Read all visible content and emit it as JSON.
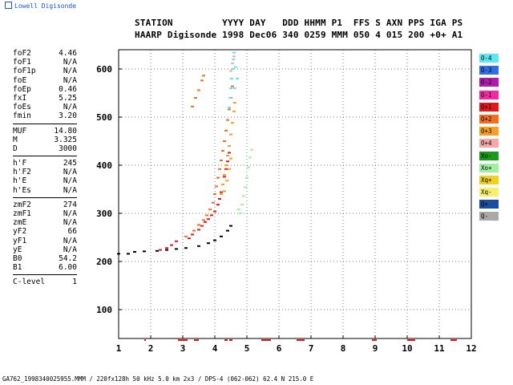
{
  "logo": "Lowell Digisonde",
  "header": {
    "line1": "STATION         YYYY DAY   DDD HHMM P1  FFS S AXN PPS IGA PS",
    "line2": "HAARP Digisonde 1998 Dec06 340 0259 MMM 050 4 015 200 +0+ A1"
  },
  "params": [
    [
      [
        "foF2",
        "4.46"
      ],
      [
        "foF1",
        "N/A"
      ],
      [
        "foF1p",
        "N/A"
      ],
      [
        "foE",
        "N/A"
      ],
      [
        "foEp",
        "0.46"
      ],
      [
        "fxI",
        "5.25"
      ],
      [
        "foEs",
        "N/A"
      ],
      [
        "fmin",
        "3.20"
      ]
    ],
    [
      [
        "MUF",
        "14.80"
      ],
      [
        "M",
        "3.325"
      ],
      [
        "D",
        "3000"
      ]
    ],
    [
      [
        "h'F",
        "245"
      ],
      [
        "h'F2",
        "N/A"
      ],
      [
        "h'E",
        "N/A"
      ],
      [
        "h'Es",
        "N/A"
      ]
    ],
    [
      [
        "zmF2",
        "274"
      ],
      [
        "zmF1",
        "N/A"
      ],
      [
        "zmE",
        "N/A"
      ],
      [
        "yF2",
        "66"
      ],
      [
        "yF1",
        "N/A"
      ],
      [
        "yE",
        "N/A"
      ],
      [
        "B0",
        "54.2"
      ],
      [
        "B1",
        "6.00"
      ]
    ],
    [
      [
        "C-level",
        "1"
      ]
    ]
  ],
  "legend": [
    {
      "label": "O-4",
      "color": "#5fe6f0"
    },
    {
      "label": "O-3",
      "color": "#2f6fe0"
    },
    {
      "label": "O-2",
      "color": "#b01aa8"
    },
    {
      "label": "O-1",
      "color": "#f02aa0"
    },
    {
      "label": "O+1",
      "color": "#e01a1a"
    },
    {
      "label": "O+2",
      "color": "#f07020"
    },
    {
      "label": "O+3",
      "color": "#f5a020"
    },
    {
      "label": "O+4",
      "color": "#f5a8a8"
    },
    {
      "label": "Xo-",
      "color": "#1a9a1a"
    },
    {
      "label": "Xo+",
      "color": "#a0f0a0"
    },
    {
      "label": "Xq+",
      "color": "#f0d020"
    },
    {
      "label": "Xq-",
      "color": "#f5f070"
    },
    {
      "label": "Q+",
      "color": "#1a4fa0"
    },
    {
      "label": "Q-",
      "color": "#a8a8a8"
    }
  ],
  "footer": "GA762_1998340025955.MMM / 220fx128h 50 kHz 5.0 km 2x3 / DPS-4 (062-062) 62.4 N 215.0 E",
  "chart_data": {
    "type": "scatter",
    "xlim": [
      1,
      12
    ],
    "ylim": [
      40,
      640
    ],
    "x_ticks": [
      "1",
      "2",
      "3",
      "4",
      "5",
      "6",
      "7",
      "8",
      "9",
      "10",
      "11",
      "12"
    ],
    "y_ticks": [
      "100",
      "200",
      "300",
      "400",
      "500",
      "600"
    ],
    "grid": true,
    "xlabel": "",
    "ylabel": "",
    "series": [
      {
        "color": "#000000",
        "points": [
          [
            1.0,
            216
          ],
          [
            1.3,
            216
          ],
          [
            1.5,
            220
          ],
          [
            1.8,
            221
          ],
          [
            2.2,
            222
          ],
          [
            2.5,
            224
          ],
          [
            2.8,
            226
          ],
          [
            3.1,
            228
          ],
          [
            3.5,
            232
          ],
          [
            3.8,
            238
          ],
          [
            4.0,
            244
          ],
          [
            4.2,
            252
          ],
          [
            4.4,
            264
          ],
          [
            4.5,
            274
          ]
        ]
      },
      {
        "color": "#e01a1a",
        "points": [
          [
            2.3,
            224
          ],
          [
            2.5,
            228
          ],
          [
            2.65,
            234
          ],
          [
            2.8,
            242
          ],
          [
            3.2,
            248
          ],
          [
            3.3,
            256
          ],
          [
            3.5,
            266
          ],
          [
            3.6,
            274
          ],
          [
            3.7,
            282
          ],
          [
            3.8,
            288
          ],
          [
            3.9,
            296
          ],
          [
            4.0,
            304
          ],
          [
            4.1,
            318
          ],
          [
            4.15,
            330
          ],
          [
            4.2,
            344
          ],
          [
            4.25,
            360
          ],
          [
            4.3,
            376
          ],
          [
            4.35,
            392
          ],
          [
            4.4,
            408
          ],
          [
            4.45,
            426
          ]
        ]
      },
      {
        "color": "#f07020",
        "points": [
          [
            3.1,
            252
          ],
          [
            3.35,
            264
          ],
          [
            3.5,
            276
          ],
          [
            3.65,
            286
          ],
          [
            3.75,
            296
          ],
          [
            3.85,
            308
          ],
          [
            3.95,
            322
          ],
          [
            4.0,
            340
          ],
          [
            4.05,
            356
          ],
          [
            4.1,
            374
          ],
          [
            4.15,
            392
          ],
          [
            4.2,
            410
          ],
          [
            4.25,
            430
          ],
          [
            4.3,
            450
          ],
          [
            4.35,
            472
          ],
          [
            4.4,
            494
          ],
          [
            4.45,
            516
          ],
          [
            4.5,
            540
          ],
          [
            4.55,
            564
          ],
          [
            3.3,
            522
          ],
          [
            3.4,
            540
          ],
          [
            3.5,
            556
          ],
          [
            3.6,
            576
          ],
          [
            3.65,
            586
          ]
        ]
      },
      {
        "color": "#f5a020",
        "points": [
          [
            4.2,
            340
          ],
          [
            4.25,
            360
          ],
          [
            4.3,
            380
          ],
          [
            4.35,
            400
          ],
          [
            4.4,
            420
          ],
          [
            4.45,
            440
          ],
          [
            4.5,
            464
          ],
          [
            4.55,
            488
          ],
          [
            4.6,
            512
          ],
          [
            4.62,
            530
          ],
          [
            4.3,
            346
          ],
          [
            4.38,
            368
          ],
          [
            4.45,
            392
          ],
          [
            4.5,
            414
          ]
        ]
      },
      {
        "color": "#5fe6f0",
        "points": [
          [
            4.45,
            520
          ],
          [
            4.48,
            540
          ],
          [
            4.5,
            560
          ],
          [
            4.52,
            580
          ],
          [
            4.55,
            600
          ],
          [
            4.58,
            620
          ],
          [
            4.6,
            634
          ],
          [
            4.65,
            604
          ],
          [
            4.7,
            580
          ],
          [
            4.62,
            560
          ]
        ]
      },
      {
        "color": "#a0f0a0",
        "points": [
          [
            4.8,
            300
          ],
          [
            4.85,
            318
          ],
          [
            4.9,
            336
          ],
          [
            4.95,
            354
          ],
          [
            5.0,
            374
          ],
          [
            5.05,
            396
          ],
          [
            5.1,
            416
          ],
          [
            5.15,
            432
          ],
          [
            4.75,
            308
          ]
        ]
      },
      {
        "color": "#f5a8a8",
        "points": [
          [
            4.55,
            612
          ],
          [
            4.6,
            626
          ],
          [
            4.5,
            596
          ]
        ]
      }
    ],
    "bottom_marks": [
      [
        1.8,
        1.83
      ],
      [
        2.85,
        3.15
      ],
      [
        3.35,
        3.5
      ],
      [
        4.3,
        4.4
      ],
      [
        4.45,
        4.55
      ],
      [
        5.45,
        5.75
      ],
      [
        6.55,
        6.8
      ],
      [
        8.9,
        9.05
      ],
      [
        10.0,
        10.25
      ],
      [
        11.35,
        11.55
      ]
    ]
  }
}
